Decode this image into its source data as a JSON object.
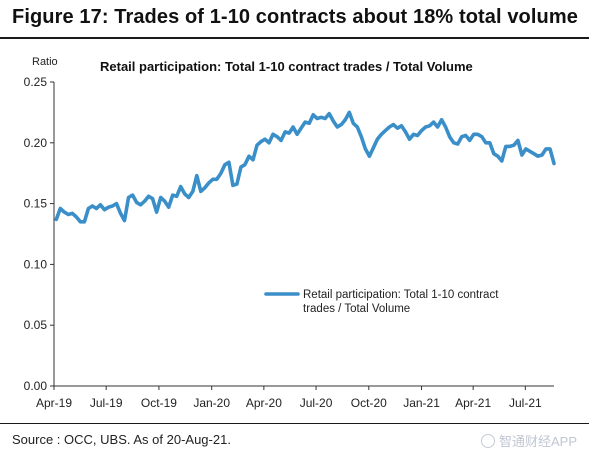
{
  "figure": {
    "title": "Figure 17: Trades of 1-10 contracts about 18% total volume",
    "source": "Source : OCC, UBS. As of 20-Aug-21.",
    "watermark": "智通财经APP"
  },
  "chart_data": {
    "type": "line",
    "title": "Retail participation: Total 1-10 contract trades / Total Volume",
    "ylabel": "Ratio",
    "xlabel": "",
    "ylim": [
      0.0,
      0.25
    ],
    "yticks": [
      0.0,
      0.05,
      0.1,
      0.15,
      0.2,
      0.25
    ],
    "ytick_labels": [
      "0.00",
      "0.05",
      "0.10",
      "0.15",
      "0.20",
      "0.25"
    ],
    "xlim": [
      "2019-04-01",
      "2021-08-20"
    ],
    "xticks": [
      "2019-04-01",
      "2019-07-01",
      "2019-10-01",
      "2020-01-01",
      "2020-04-01",
      "2020-07-01",
      "2020-10-01",
      "2021-01-01",
      "2021-04-01",
      "2021-07-01"
    ],
    "xtick_labels": [
      "Apr-19",
      "Jul-19",
      "Oct-19",
      "Jan-20",
      "Apr-20",
      "Jul-20",
      "Oct-20",
      "Jan-21",
      "Apr-21",
      "Jul-21"
    ],
    "grid": false,
    "legend_position": "center-right",
    "series": [
      {
        "name": "Retail participation: Total 1-10 contract trades / Total Volume",
        "legend_line1": "Retail participation: Total 1-10 contract",
        "legend_line2": "trades / Total Volume",
        "color": "#3a8fc9",
        "x": [
          "2019-04-05",
          "2019-04-12",
          "2019-04-19",
          "2019-04-26",
          "2019-05-03",
          "2019-05-10",
          "2019-05-17",
          "2019-05-24",
          "2019-05-31",
          "2019-06-07",
          "2019-06-14",
          "2019-06-21",
          "2019-06-28",
          "2019-07-05",
          "2019-07-12",
          "2019-07-19",
          "2019-07-26",
          "2019-08-02",
          "2019-08-09",
          "2019-08-16",
          "2019-08-23",
          "2019-08-30",
          "2019-09-06",
          "2019-09-13",
          "2019-09-20",
          "2019-09-27",
          "2019-10-04",
          "2019-10-11",
          "2019-10-18",
          "2019-10-25",
          "2019-11-01",
          "2019-11-08",
          "2019-11-15",
          "2019-11-22",
          "2019-11-29",
          "2019-12-06",
          "2019-12-13",
          "2019-12-20",
          "2019-12-27",
          "2020-01-03",
          "2020-01-10",
          "2020-01-17",
          "2020-01-24",
          "2020-01-31",
          "2020-02-07",
          "2020-02-14",
          "2020-02-21",
          "2020-02-28",
          "2020-03-06",
          "2020-03-13",
          "2020-03-20",
          "2020-03-27",
          "2020-04-03",
          "2020-04-10",
          "2020-04-17",
          "2020-04-24",
          "2020-05-01",
          "2020-05-08",
          "2020-05-15",
          "2020-05-22",
          "2020-05-29",
          "2020-06-05",
          "2020-06-12",
          "2020-06-19",
          "2020-06-26",
          "2020-07-03",
          "2020-07-10",
          "2020-07-17",
          "2020-07-24",
          "2020-07-31",
          "2020-08-07",
          "2020-08-14",
          "2020-08-21",
          "2020-08-28",
          "2020-09-04",
          "2020-09-11",
          "2020-09-18",
          "2020-09-25",
          "2020-10-02",
          "2020-10-09",
          "2020-10-16",
          "2020-10-23",
          "2020-10-30",
          "2020-11-06",
          "2020-11-13",
          "2020-11-20",
          "2020-11-27",
          "2020-12-04",
          "2020-12-11",
          "2020-12-18",
          "2020-12-25",
          "2021-01-01",
          "2021-01-08",
          "2021-01-15",
          "2021-01-22",
          "2021-01-29",
          "2021-02-05",
          "2021-02-12",
          "2021-02-19",
          "2021-02-26",
          "2021-03-05",
          "2021-03-12",
          "2021-03-19",
          "2021-03-26",
          "2021-04-02",
          "2021-04-09",
          "2021-04-16",
          "2021-04-23",
          "2021-04-30",
          "2021-05-07",
          "2021-05-14",
          "2021-05-21",
          "2021-05-28",
          "2021-06-04",
          "2021-06-11",
          "2021-06-18",
          "2021-06-25",
          "2021-07-02",
          "2021-07-09",
          "2021-07-16",
          "2021-07-23",
          "2021-07-30",
          "2021-08-06",
          "2021-08-13",
          "2021-08-20"
        ],
        "values": [
          0.137,
          0.146,
          0.143,
          0.141,
          0.142,
          0.139,
          0.135,
          0.135,
          0.146,
          0.148,
          0.146,
          0.149,
          0.145,
          0.147,
          0.148,
          0.15,
          0.142,
          0.136,
          0.155,
          0.157,
          0.151,
          0.149,
          0.152,
          0.156,
          0.154,
          0.143,
          0.155,
          0.152,
          0.147,
          0.157,
          0.156,
          0.164,
          0.158,
          0.155,
          0.16,
          0.173,
          0.16,
          0.163,
          0.167,
          0.17,
          0.17,
          0.175,
          0.182,
          0.184,
          0.165,
          0.166,
          0.18,
          0.182,
          0.189,
          0.186,
          0.198,
          0.201,
          0.203,
          0.2,
          0.207,
          0.205,
          0.202,
          0.209,
          0.208,
          0.213,
          0.207,
          0.212,
          0.217,
          0.216,
          0.223,
          0.22,
          0.221,
          0.22,
          0.224,
          0.218,
          0.213,
          0.215,
          0.219,
          0.225,
          0.216,
          0.213,
          0.205,
          0.195,
          0.189,
          0.196,
          0.203,
          0.207,
          0.21,
          0.213,
          0.215,
          0.212,
          0.214,
          0.209,
          0.203,
          0.207,
          0.206,
          0.21,
          0.213,
          0.214,
          0.217,
          0.213,
          0.219,
          0.213,
          0.205,
          0.2,
          0.199,
          0.205,
          0.206,
          0.202,
          0.207,
          0.207,
          0.205,
          0.2,
          0.2,
          0.191,
          0.189,
          0.185,
          0.197,
          0.197,
          0.198,
          0.202,
          0.19,
          0.195,
          0.193,
          0.191,
          0.189,
          0.19,
          0.195,
          0.195,
          0.183
        ]
      }
    ]
  }
}
